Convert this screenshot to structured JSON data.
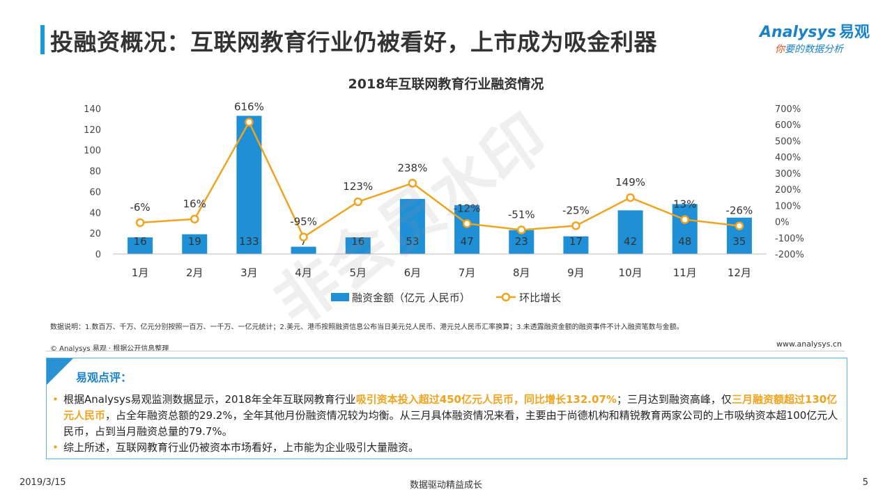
{
  "header": {
    "title": "投融资概况：互联网教育行业仍被看好，上市成为吸金利器",
    "logo_text": "nalysys",
    "logo_prefix": "A",
    "logo_cn": "易观",
    "logo_slogan_highlight": "你",
    "logo_slogan": "要的数据分析"
  },
  "chart_data": {
    "type": "bar",
    "title": "2018年互联网教育行业融资情况",
    "categories": [
      "1月",
      "2月",
      "3月",
      "4月",
      "5月",
      "6月",
      "7月",
      "8月",
      "9月",
      "10月",
      "11月",
      "12月"
    ],
    "series": [
      {
        "name": "融资金额（亿元  人民币）",
        "type": "bar",
        "axis": "left",
        "values": [
          16,
          19,
          133,
          7,
          16,
          53,
          47,
          23,
          17,
          42,
          48,
          35
        ]
      },
      {
        "name": "环比增长",
        "type": "line",
        "axis": "right",
        "values": [
          -6,
          16,
          616,
          -95,
          123,
          238,
          -12,
          -51,
          -25,
          149,
          13,
          -26
        ],
        "labels": [
          "-6%",
          "16%",
          "616%",
          "-95%",
          "123%",
          "238%",
          "-12%",
          "-51%",
          "-25%",
          "149%",
          "13%",
          "-26%"
        ]
      }
    ],
    "ylim_left": [
      0,
      140
    ],
    "yticks_left": [
      "0",
      "20",
      "40",
      "60",
      "80",
      "100",
      "120",
      "140"
    ],
    "ylim_right": [
      -200,
      700
    ],
    "yticks_right": [
      "-200%",
      "-100%",
      "0%",
      "100%",
      "200%",
      "300%",
      "400%",
      "500%",
      "600%",
      "700%"
    ],
    "legend_position": "bottom",
    "colors": {
      "bar": "#1f8fd6",
      "line": "#f0a31e"
    }
  },
  "notes": {
    "data_note": "数据说明：1.数百万、千万、亿元分别按照一百万、一千万、一亿元统计；2.美元、港币按照融资信息公布当日美元兑人民币、港元兑人民币汇率换算；3.未透露融资金额的融资事件不计入融资笔数与金额。",
    "source": "© Analysys 易观 · 根据公开信息整理",
    "website": "www.analysys.cn"
  },
  "comment": {
    "heading": "易观点评：",
    "p1_a": "根据Analysys易观监测数据显示，2018年全年互联网教育行业",
    "p1_b": "吸引资本投入超过450亿元人民币，同比增长132.07%",
    "p1_c": "；三月达到融资高峰，仅",
    "p1_d": "三月融资额超过130亿元人民币",
    "p1_e": "，占全年融资总额的29.2%，全年其他月份融资情况较为均衡。从三月具体融资情况来看，主要由于尚德机构和精锐教育两家公司的上市吸纳资本超100亿元人民币，占到当月融资总量的79.7%。",
    "p2": "综上所述，互联网教育行业仍被资本市场看好，上市能为企业吸引大量融资。",
    "bullet": "•"
  },
  "footer": {
    "date": "2019/3/15",
    "center": "数据驱动精益成长",
    "page": "5"
  },
  "watermark": "非会员水印"
}
